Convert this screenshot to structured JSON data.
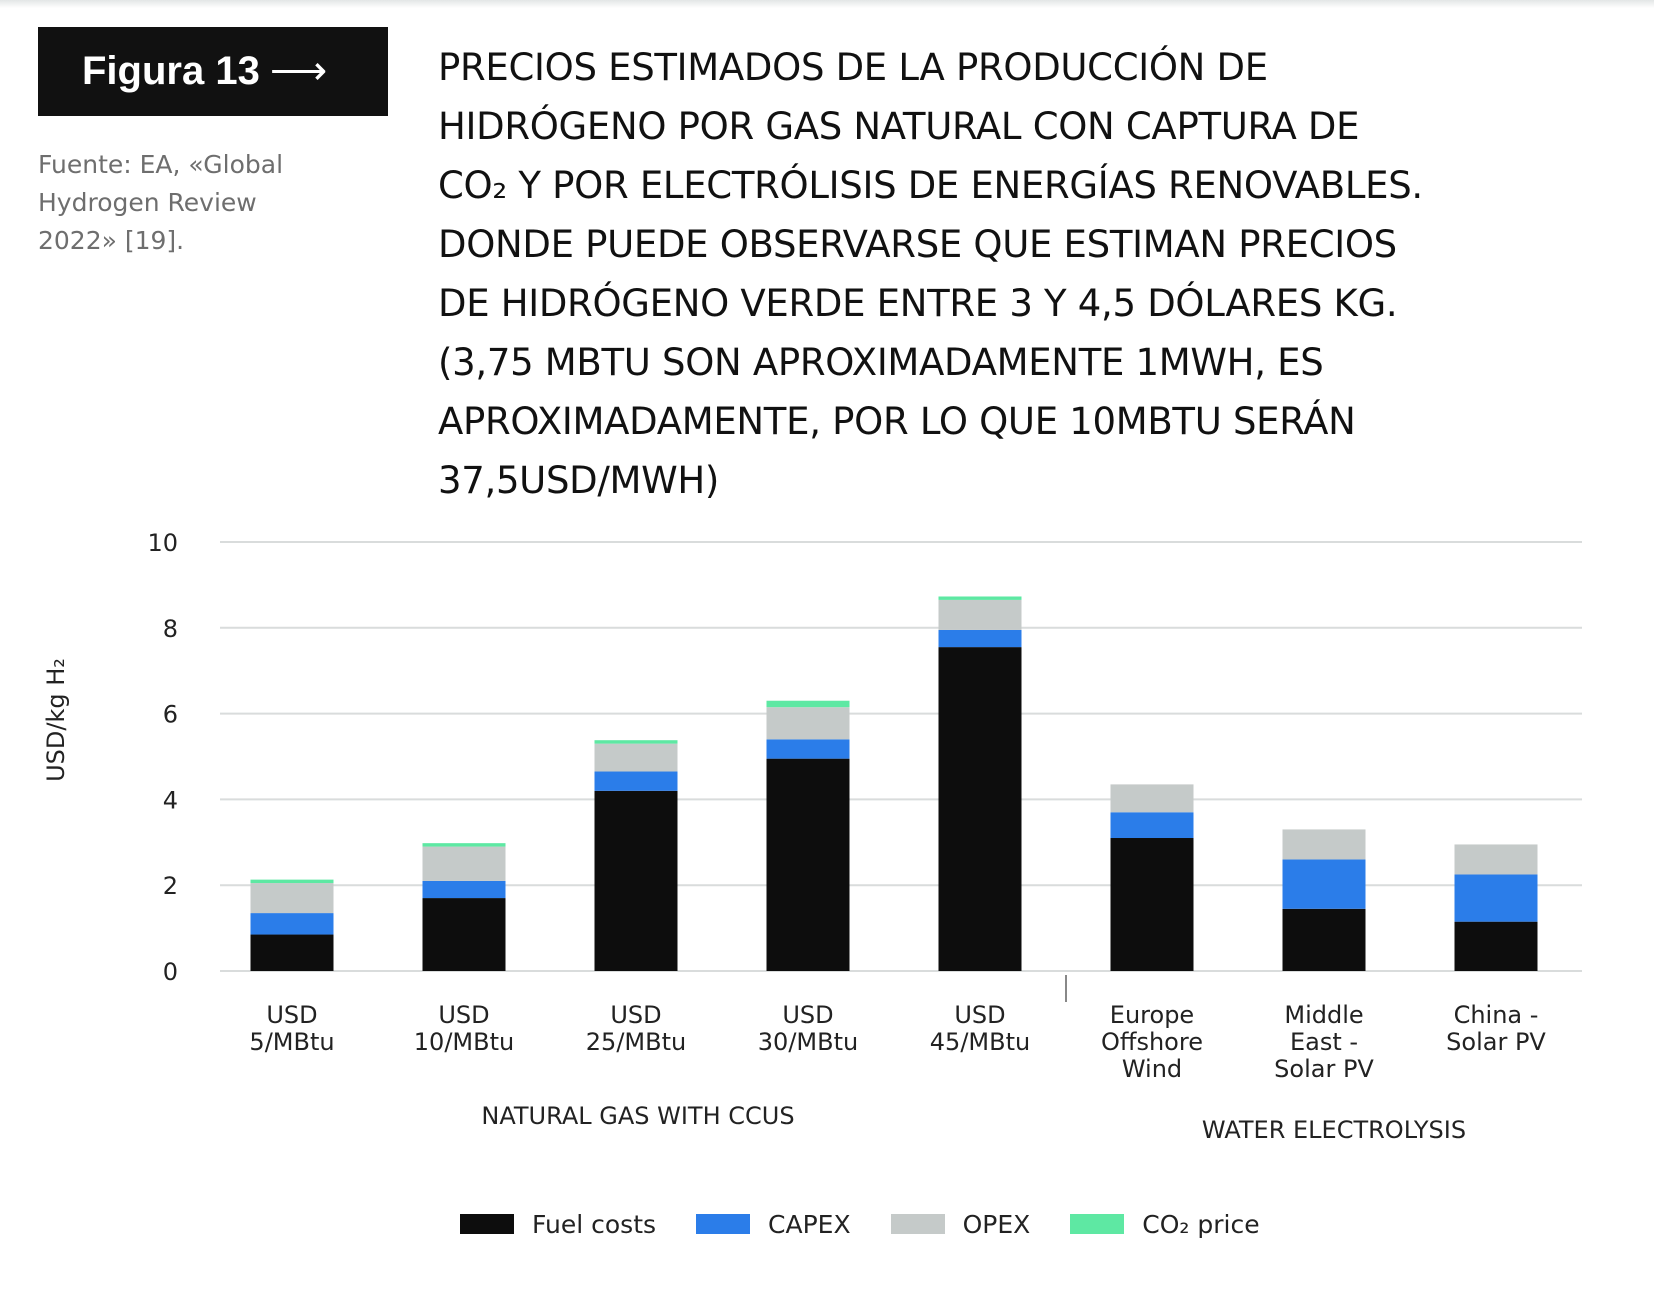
{
  "header": {
    "figure_label": "Figura 13",
    "arrow": "⟶",
    "source_lines": [
      "Fuente: EA, «Global",
      "Hydrogen Review",
      "2022» [19]."
    ],
    "title_lines": [
      "PRECIOS ESTIMADOS DE LA PRODUCCIÓN DE",
      "HIDRÓGENO POR GAS NATURAL CON CAPTURA DE",
      "CO₂ Y POR ELECTRÓLISIS DE ENERGÍAS RENOVABLES.",
      "DONDE PUEDE OBSERVARSE QUE ESTIMAN PRECIOS",
      "DE HIDRÓGENO VERDE ENTRE 3 Y 4,5 DÓLARES KG.",
      "(3,75 MBTU SON APROXIMADAMENTE 1MWH, ES",
      "APROXIMADAMENTE, POR LO QUE 10MBTU SERÁN",
      "37,5USD/MWH)"
    ]
  },
  "legend": [
    {
      "label": "Fuel costs",
      "color": "#0d0d0d"
    },
    {
      "label": "CAPEX",
      "color": "#2b7de9"
    },
    {
      "label": "OPEX",
      "color": "#c5cac9"
    },
    {
      "label": "CO₂ price",
      "color": "#5ee8a3"
    }
  ],
  "chart_data": {
    "type": "bar",
    "stacked": true,
    "title": "",
    "xlabel": "",
    "ylabel": "USD/kg H₂",
    "ylim": [
      0,
      10
    ],
    "yticks": [
      0,
      2,
      4,
      6,
      8,
      10
    ],
    "grid": true,
    "legend_position": "bottom",
    "categories": [
      [
        "USD",
        "5/MBtu"
      ],
      [
        "USD",
        "10/MBtu"
      ],
      [
        "USD",
        "25/MBtu"
      ],
      [
        "USD",
        "30/MBtu"
      ],
      [
        "USD",
        "45/MBtu"
      ],
      [
        "Europe",
        "Offshore",
        "Wind"
      ],
      [
        "Middle",
        "East -",
        "Solar PV"
      ],
      [
        "China -",
        "Solar PV"
      ]
    ],
    "groups": [
      {
        "label": "NATURAL GAS WITH CCUS",
        "categories": [
          0,
          1,
          2,
          3,
          4
        ]
      },
      {
        "label": "WATER ELECTROLYSIS",
        "categories": [
          5,
          6,
          7
        ]
      }
    ],
    "series": [
      {
        "name": "Fuel costs",
        "color": "#0d0d0d",
        "values": [
          0.85,
          1.7,
          4.2,
          4.95,
          7.55,
          3.1,
          1.45,
          1.15
        ]
      },
      {
        "name": "CAPEX",
        "color": "#2b7de9",
        "values": [
          0.5,
          0.4,
          0.45,
          0.45,
          0.4,
          0.6,
          1.15,
          1.1
        ]
      },
      {
        "name": "OPEX",
        "color": "#c5cac9",
        "values": [
          0.7,
          0.8,
          0.65,
          0.75,
          0.7,
          0.65,
          0.7,
          0.7
        ]
      },
      {
        "name": "CO₂ price",
        "color": "#5ee8a3",
        "values": [
          0.08,
          0.08,
          0.08,
          0.15,
          0.08,
          0,
          0,
          0
        ]
      }
    ]
  }
}
